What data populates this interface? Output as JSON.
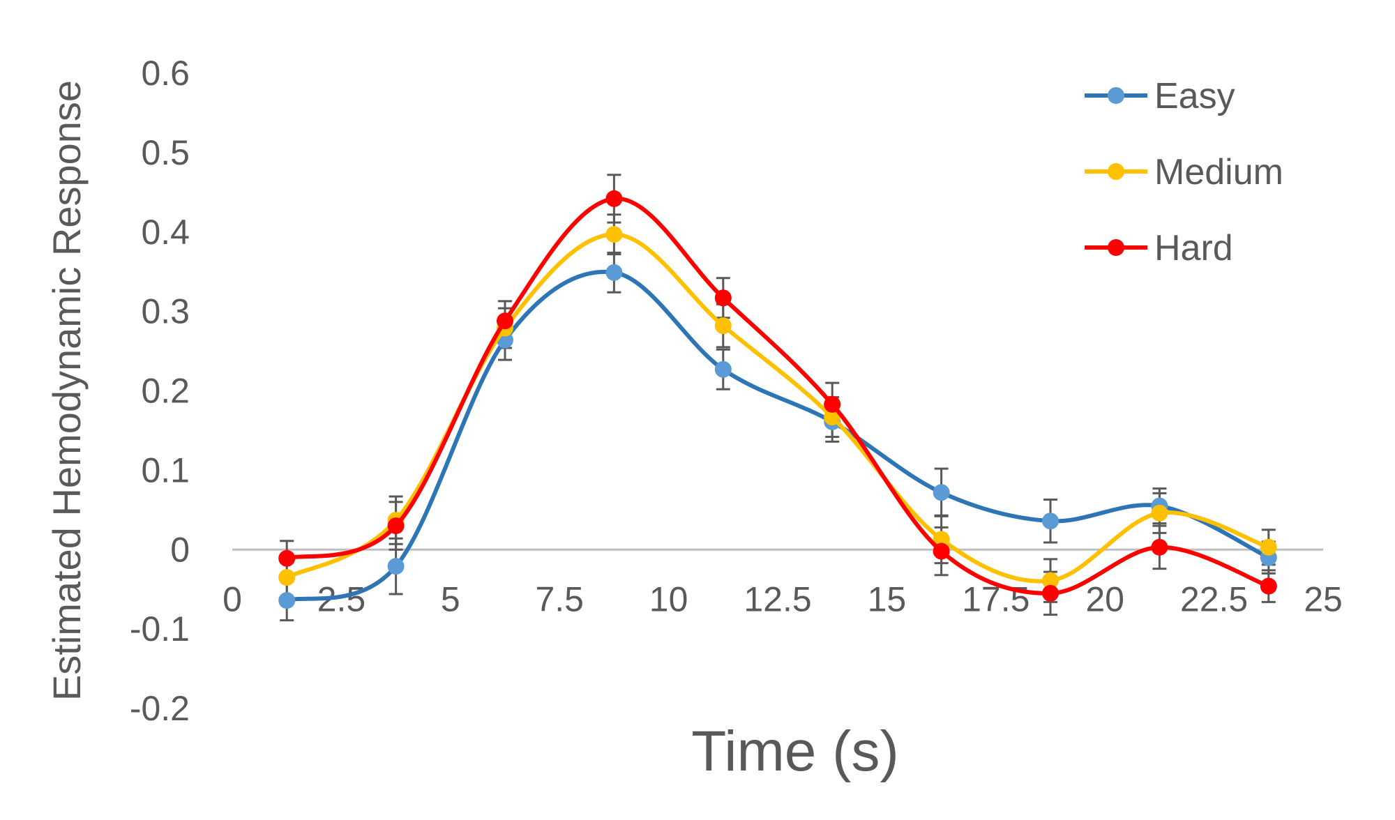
{
  "chart_data": {
    "type": "line",
    "title": "",
    "xlabel": "Time (s)",
    "ylabel": "Estimated Hemodynamic Response",
    "xlim": [
      0,
      25
    ],
    "ylim": [
      -0.2,
      0.6
    ],
    "x_ticks": [
      "0",
      "2.5",
      "5",
      "7.5",
      "10",
      "12.5",
      "15",
      "17.5",
      "20",
      "22.5",
      "25"
    ],
    "y_ticks": [
      "-0.2",
      "-0.1",
      "0",
      "0.1",
      "0.2",
      "0.3",
      "0.4",
      "0.5",
      "0.6"
    ],
    "grid": false,
    "smoothed": true,
    "error_bars": true,
    "legend_position": "top-right",
    "x": [
      1.25,
      3.75,
      6.25,
      8.75,
      11.25,
      13.75,
      16.25,
      18.75,
      21.25,
      23.75
    ],
    "series": [
      {
        "name": "Easy",
        "line_color": "#2E75B6",
        "marker_color": "#5B9BD5",
        "values": [
          -0.064,
          -0.021,
          0.264,
          0.349,
          0.227,
          0.161,
          0.072,
          0.036,
          0.055,
          -0.01
        ],
        "errors": [
          0.025,
          0.035,
          0.025,
          0.025,
          0.025,
          0.025,
          0.03,
          0.027,
          0.022,
          0.02
        ]
      },
      {
        "name": "Medium",
        "line_color": "#FFC000",
        "marker_color": "#FFC000",
        "values": [
          -0.035,
          0.037,
          0.279,
          0.397,
          0.282,
          0.167,
          0.013,
          -0.039,
          0.046,
          0.003
        ],
        "errors": [
          0.025,
          0.03,
          0.025,
          0.025,
          0.027,
          0.025,
          0.03,
          0.027,
          0.025,
          0.022
        ]
      },
      {
        "name": "Hard",
        "line_color": "#FF0000",
        "marker_color": "#FF0000",
        "values": [
          -0.011,
          0.03,
          0.288,
          0.442,
          0.317,
          0.183,
          -0.002,
          -0.055,
          0.003,
          -0.046
        ],
        "errors": [
          0.022,
          0.03,
          0.025,
          0.03,
          0.025,
          0.027,
          0.03,
          0.027,
          0.027,
          0.02
        ]
      }
    ]
  }
}
